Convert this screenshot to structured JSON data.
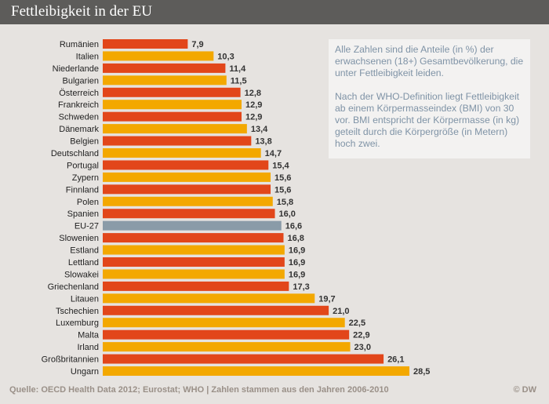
{
  "header": {
    "title": "Fettleibigkeit in der EU"
  },
  "note": {
    "p1": "Alle Zahlen sind die Anteile (in %) der erwachsenen (18+) Gesamtbevölkerung, die unter Fettleibigkeit leiden.",
    "p2": "Nach der WHO-Definition liegt Fettleibigkeit ab einem Körpermasseindex (BMI) von 30 vor. BMI entspricht der Körpermasse (in kg) geteilt durch die Körpergröße (in Metern) hoch zwei."
  },
  "footer": {
    "source": "Quelle: OECD Health Data 2012; Eurostat; WHO | Zahlen stammen aus den Jahren 2006-2010",
    "copyright": "© DW"
  },
  "colors": {
    "red": "#e2461a",
    "orange": "#f3a800",
    "highlight": "#8a9ba8"
  },
  "chart_data": {
    "type": "bar",
    "orientation": "horizontal",
    "title": "Fettleibigkeit in der EU",
    "xlim": [
      0,
      28.5
    ],
    "grid": false,
    "categories": [
      "Rumänien",
      "Italien",
      "Niederlande",
      "Bulgarien",
      "Österreich",
      "Frankreich",
      "Schweden",
      "Dänemark",
      "Belgien",
      "Deutschland",
      "Portugal",
      "Zypern",
      "Finnland",
      "Polen",
      "Spanien",
      "EU-27",
      "Slowenien",
      "Estland",
      "Lettland",
      "Slowakei",
      "Griechenland",
      "Litauen",
      "Tschechien",
      "Luxemburg",
      "Malta",
      "Irland",
      "Großbritannien",
      "Ungarn"
    ],
    "values": [
      7.9,
      10.3,
      11.4,
      11.5,
      12.8,
      12.9,
      12.9,
      13.4,
      13.8,
      14.7,
      15.4,
      15.6,
      15.6,
      15.8,
      16.0,
      16.6,
      16.8,
      16.9,
      16.9,
      16.9,
      17.3,
      19.7,
      21.0,
      22.5,
      22.9,
      23.0,
      26.1,
      28.5
    ],
    "value_labels": [
      "7,9",
      "10,3",
      "11,4",
      "11,5",
      "12,8",
      "12,9",
      "12,9",
      "13,4",
      "13,8",
      "14,7",
      "15,4",
      "15,6",
      "15,6",
      "15,8",
      "16,0",
      "16,6",
      "16,8",
      "16,9",
      "16,9",
      "16,9",
      "17,3",
      "19,7",
      "21,0",
      "22,5",
      "22,9",
      "23,0",
      "26,1",
      "28,5"
    ],
    "highlight": "EU-27"
  }
}
